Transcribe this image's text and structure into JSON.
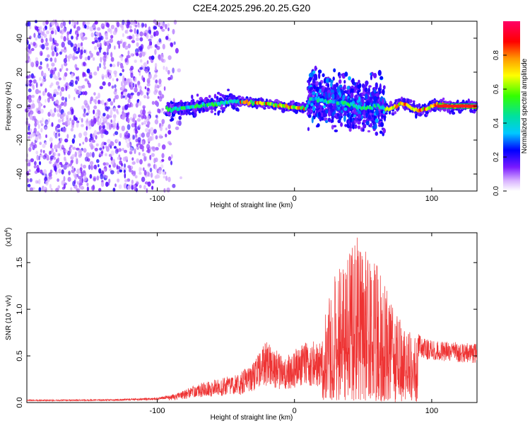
{
  "title": "C2E4.2025.296.20.25.G20",
  "chart_data": [
    {
      "type": "heatmap",
      "xlabel": "Height of straight line (km)",
      "ylabel": "Frequency (Hz)",
      "xlim": [
        -195,
        133
      ],
      "ylim": [
        -50,
        50
      ],
      "xticks": [
        -100,
        0,
        100
      ],
      "xtick_labels": [
        "-100",
        "0",
        "100"
      ],
      "yticks": [
        -40,
        -20,
        0,
        20,
        40
      ],
      "ytick_labels": [
        "-40",
        "-20",
        "0",
        "20",
        "40"
      ],
      "colorbar": {
        "label": "Normalized spectral amplitude",
        "range": [
          0,
          1
        ],
        "ticks": [
          0.0,
          0.2,
          0.4,
          0.6,
          0.8
        ],
        "tick_labels": [
          "0.0",
          "0.2",
          "0.4",
          "0.6",
          "0.8"
        ]
      },
      "regions": [
        {
          "x": [
            -195,
            -92
          ],
          "freq_band": [
            -50,
            50
          ],
          "intensity": "low-to-medium",
          "description": "broadband noise"
        },
        {
          "x": [
            -92,
            -40
          ],
          "freq_band": [
            -6,
            8
          ],
          "intensity": "high"
        },
        {
          "x": [
            -40,
            8
          ],
          "freq_band": [
            -3,
            3
          ],
          "intensity": "very high"
        },
        {
          "x": [
            8,
            65
          ],
          "freq_band": [
            -20,
            30
          ],
          "intensity": "medium-high"
        },
        {
          "x": [
            65,
            133
          ],
          "freq_band": [
            -5,
            5
          ],
          "intensity": "very high"
        }
      ],
      "ridge": [
        {
          "x": -92,
          "y": -2
        },
        {
          "x": -80,
          "y": -1
        },
        {
          "x": -60,
          "y": 1
        },
        {
          "x": -45,
          "y": 3
        },
        {
          "x": -30,
          "y": 2
        },
        {
          "x": -15,
          "y": 1
        },
        {
          "x": 0,
          "y": -1
        },
        {
          "x": 8,
          "y": -1
        },
        {
          "x": 12,
          "y": 5
        },
        {
          "x": 22,
          "y": 3
        },
        {
          "x": 35,
          "y": 2
        },
        {
          "x": 50,
          "y": -1
        },
        {
          "x": 60,
          "y": 0
        },
        {
          "x": 70,
          "y": -2
        },
        {
          "x": 78,
          "y": 2
        },
        {
          "x": 90,
          "y": -3
        },
        {
          "x": 98,
          "y": -1
        },
        {
          "x": 104,
          "y": 1
        },
        {
          "x": 115,
          "y": 0
        },
        {
          "x": 133,
          "y": 0
        }
      ]
    },
    {
      "type": "line",
      "xlabel": "Height of straight line (km)",
      "ylabel": "SNR (10 * v/v)",
      "y_multiplier": "(x10",
      "y_multiplier_exp": "4",
      "y_multiplier_close": ")",
      "xlim": [
        -195,
        133
      ],
      "ylim": [
        0,
        18200
      ],
      "xticks": [
        -100,
        0,
        100
      ],
      "xtick_labels": [
        "-100",
        "0",
        "100"
      ],
      "yticks": [
        0,
        5000,
        10000,
        15000
      ],
      "ytick_labels": [
        "0.0",
        "0.5",
        "1.0",
        "1.5"
      ],
      "color": "#ee3333",
      "series": [
        {
          "name": "SNR",
          "envelope": [
            {
              "x": -195,
              "y": 300
            },
            {
              "x": -160,
              "y": 300
            },
            {
              "x": -130,
              "y": 350
            },
            {
              "x": -100,
              "y": 500
            },
            {
              "x": -85,
              "y": 1000
            },
            {
              "x": -70,
              "y": 2000
            },
            {
              "x": -55,
              "y": 2500
            },
            {
              "x": -40,
              "y": 3000
            },
            {
              "x": -30,
              "y": 4500
            },
            {
              "x": -20,
              "y": 6500
            },
            {
              "x": -10,
              "y": 5000
            },
            {
              "x": 0,
              "y": 5500
            },
            {
              "x": 10,
              "y": 6500
            },
            {
              "x": 18,
              "y": 6000
            },
            {
              "x": 20,
              "y": 8000
            },
            {
              "x": 30,
              "y": 14000
            },
            {
              "x": 40,
              "y": 16000
            },
            {
              "x": 46,
              "y": 18000
            },
            {
              "x": 60,
              "y": 15000
            },
            {
              "x": 70,
              "y": 11000
            },
            {
              "x": 80,
              "y": 8000
            },
            {
              "x": 95,
              "y": 6500
            },
            {
              "x": 110,
              "y": 6200
            },
            {
              "x": 133,
              "y": 6000
            }
          ]
        }
      ]
    }
  ]
}
